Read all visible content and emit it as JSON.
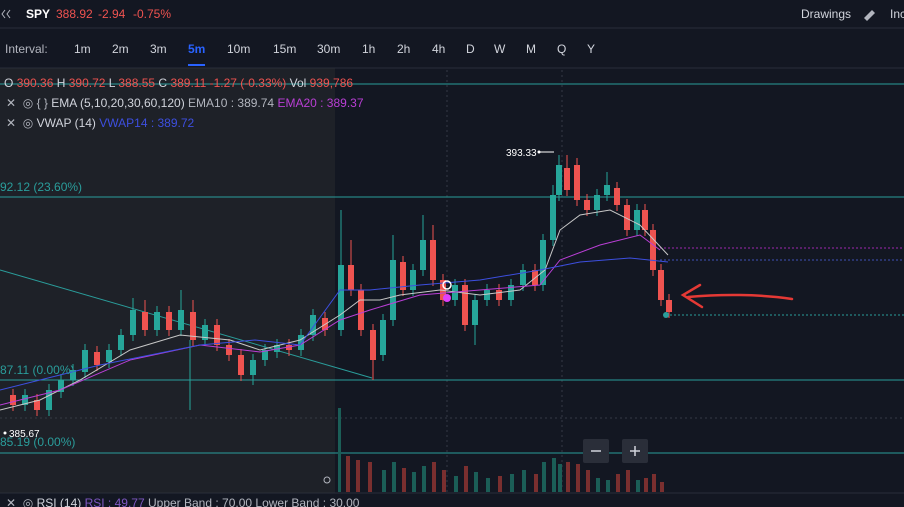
{
  "header": {
    "symbol": "SPY",
    "price": "388.92",
    "change": "-2.94",
    "change_pct": "-0.75%",
    "drawings": "Drawings",
    "indicators": "Inc"
  },
  "intervals": {
    "label": "Interval:",
    "options": [
      "1m",
      "2m",
      "3m",
      "5m",
      "10m",
      "15m",
      "30m",
      "1h",
      "2h",
      "4h",
      "D",
      "W",
      "M",
      "Q",
      "Y"
    ],
    "active": "5m"
  },
  "ohlc": {
    "o_label": "O",
    "o": "390.36",
    "h_label": "H",
    "h": "390.72",
    "l_label": "L",
    "l": "388.55",
    "c_label": "C",
    "c": "389.11",
    "change": "-1.27 (-0.33%)",
    "vol_label": "Vol",
    "vol": "939,786"
  },
  "studies": [
    {
      "name": "EMA (5,10,20,30,60,120)",
      "values": [
        "EMA10 : 389.74",
        "EMA20 : 389.37"
      ]
    },
    {
      "name": "VWAP (14)",
      "values": [
        "VWAP14 : 389.72"
      ]
    }
  ],
  "price_labels": {
    "high": "393.33",
    "low": "385.67",
    "fib_upper": "92.12 (23.60%)",
    "fib_mid": "87.11 (0.00%)",
    "fib_lower": "85.19 (0.00%)"
  },
  "rsi": {
    "name": "RSI (14)",
    "value": "RSI : 49.77",
    "upper": "Upper Band : 70.00",
    "lower": "Lower Band : 30.00"
  }
}
